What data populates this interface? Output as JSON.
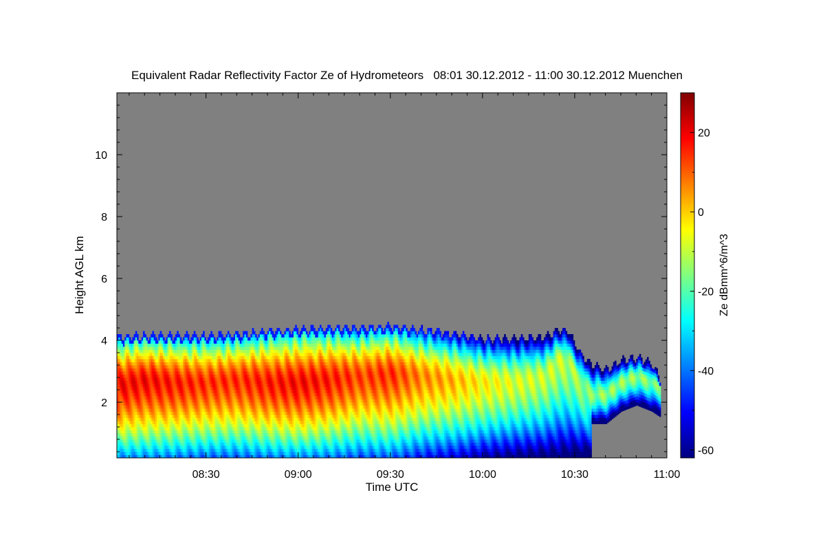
{
  "chart_data": {
    "type": "heatmap",
    "title": "Equivalent Radar Reflectivity Factor Ze of Hydrometeors   08:01 30.12.2012 - 11:00 30.12.2012 Muenchen",
    "xlabel": "Time UTC",
    "ylabel": "Height AGL km",
    "colorbar_label": "Ze dBmm^6/m^3",
    "x_ticks": [
      "08:30",
      "09:00",
      "09:30",
      "10:00",
      "10:30",
      "11:00"
    ],
    "x_tick_values_min": [
      510,
      540,
      570,
      600,
      630,
      660
    ],
    "xlim_min": [
      481,
      660
    ],
    "y_ticks": [
      2,
      4,
      6,
      8,
      10
    ],
    "ylim": [
      0.2,
      12.0
    ],
    "colorbar_ticks": [
      20,
      0,
      -20,
      -40,
      -60
    ],
    "colorbar_range": [
      -62,
      30
    ],
    "no_data_color": "#808080",
    "colormap": [
      "#000080",
      "#0000ff",
      "#0080ff",
      "#00ffff",
      "#80ff80",
      "#ffff00",
      "#ff8000",
      "#ff0000",
      "#800000"
    ],
    "profile": {
      "time_min": [
        481,
        490,
        500,
        510,
        520,
        530,
        540,
        550,
        560,
        570,
        580,
        590,
        600,
        610,
        620,
        625,
        628,
        632,
        635,
        640,
        645,
        650,
        655,
        658
      ],
      "echo_top_km": [
        4.05,
        4.1,
        4.1,
        4.1,
        4.15,
        4.25,
        4.3,
        4.35,
        4.35,
        4.4,
        4.3,
        4.15,
        4.0,
        4.0,
        4.05,
        4.3,
        4.2,
        3.5,
        3.2,
        3.0,
        3.3,
        3.4,
        3.2,
        2.6
      ],
      "core_height_km": [
        2.5,
        2.7,
        2.6,
        2.6,
        2.7,
        2.6,
        2.6,
        2.7,
        2.8,
        2.9,
        2.8,
        2.7,
        2.6,
        2.6,
        2.8,
        3.4,
        3.2,
        2.6,
        2.2,
        2.2,
        2.6,
        2.8,
        2.6,
        2.4
      ],
      "core_max_dbz": [
        18,
        18,
        16,
        14,
        14,
        16,
        18,
        16,
        12,
        14,
        6,
        2,
        -4,
        -8,
        -10,
        -10,
        -12,
        -14,
        -16,
        -14,
        -14,
        -14,
        -16,
        -18
      ]
    }
  }
}
